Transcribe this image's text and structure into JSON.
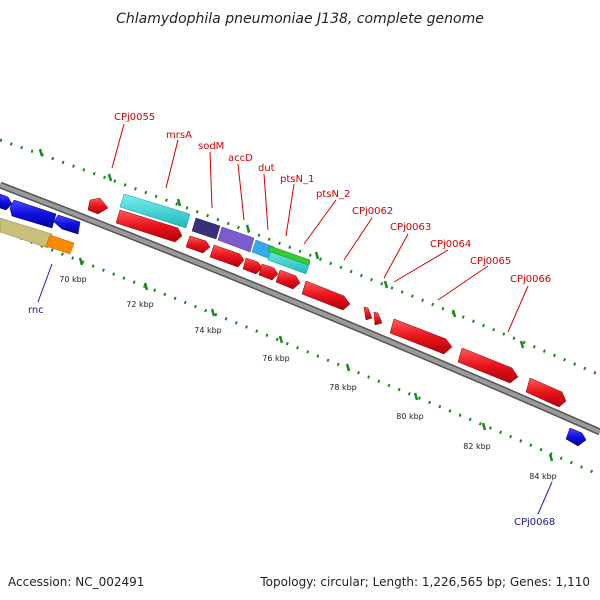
{
  "title": "Chlamydophila pneumoniae J138, complete genome",
  "footer": {
    "accession": "Accession: NC_002491",
    "summary": "Topology: circular; Length: 1,226,565 bp; Genes: 1,110"
  },
  "kbp_ticks": [
    "70 kbp",
    "72 kbp",
    "74 kbp",
    "76 kbp",
    "78 kbp",
    "80 kbp",
    "82 kbp",
    "84 kbp"
  ],
  "gene_labels": [
    {
      "text": "CPj0055",
      "color": "#d40000"
    },
    {
      "text": "mrsA",
      "color": "#d40000"
    },
    {
      "text": "sodM",
      "color": "#d40000"
    },
    {
      "text": "accD",
      "color": "#d40000"
    },
    {
      "text": "dut",
      "color": "#d40000"
    },
    {
      "text": "ptsN_1",
      "color": "#d40000"
    },
    {
      "text": "ptsN_2",
      "color": "#d40000"
    },
    {
      "text": "CPj0062",
      "color": "#d40000"
    },
    {
      "text": "CPj0063",
      "color": "#d40000"
    },
    {
      "text": "CPj0064",
      "color": "#d40000"
    },
    {
      "text": "CPj0065",
      "color": "#d40000"
    },
    {
      "text": "CPj0066",
      "color": "#d40000"
    },
    {
      "text": "rnc",
      "color": "#1b1b9e"
    },
    {
      "text": "CPj0068",
      "color": "#1b1b9e"
    }
  ],
  "colors": {
    "forward_strand": "#e8141c",
    "reverse_strand": "#1010e0",
    "backbone": "#8a8a8a",
    "tick": "#1a8a1a",
    "label_red": "#d40000",
    "label_blue": "#1b1b9e",
    "cyan": "#2fd0d0",
    "dark_purple": "#3a2f7a",
    "purple": "#7a5ccc",
    "light_blue": "#33aaee",
    "green": "#33cc33",
    "khaki": "#c8c07a",
    "orange": "#ff8800"
  }
}
